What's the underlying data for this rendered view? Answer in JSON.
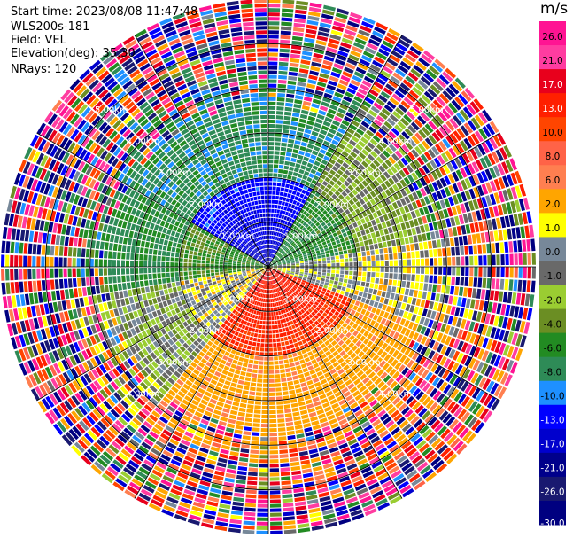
{
  "header": {
    "start_time": "Start time: 2023/08/08 11:47:48",
    "instrument": "WLS200s-181",
    "field": "Field: VEL",
    "elevation": "Elevation(deg): 35.30",
    "nrays": "NRays: 120"
  },
  "chart_data": {
    "type": "heatmap",
    "projection": "polar-ppi",
    "field": "VEL",
    "unit": "m/s",
    "n_rays": 120,
    "max_range_km": 6.0,
    "range_ring_labels": [
      "1.00km",
      "2.00km",
      "3.00km",
      "4.00km",
      "5.00km"
    ],
    "range_rings_km": [
      1,
      2,
      3,
      4,
      5
    ],
    "azimuth_lines_deg": [
      0,
      30,
      60,
      90,
      120,
      150,
      180,
      210,
      240,
      270,
      300,
      330
    ],
    "sector_means_ms": [
      {
        "az_from": 300,
        "az_to": 30,
        "near_km_mean": -11,
        "mid_km_mean": -7
      },
      {
        "az_from": 30,
        "az_to": 80,
        "near_km_mean": -5,
        "mid_km_mean": -2
      },
      {
        "az_from": 80,
        "az_to": 110,
        "near_km_mean": 0,
        "mid_km_mean": 1
      },
      {
        "az_from": 110,
        "az_to": 220,
        "near_km_mean": 13,
        "mid_km_mean": 5
      },
      {
        "az_from": 220,
        "az_to": 260,
        "near_km_mean": 1,
        "mid_km_mean": -1
      },
      {
        "az_from": 260,
        "az_to": 300,
        "near_km_mean": -4,
        "mid_km_mean": -6
      }
    ],
    "colorbar": {
      "title": "m/s",
      "tick_labels": [
        "26.0",
        "21.0",
        "17.0",
        "13.0",
        "10.0",
        "8.0",
        "6.0",
        "2.0",
        "1.0",
        "0.0",
        "-1.0",
        "-2.0",
        "-4.0",
        "-6.0",
        "-8.0",
        "-10.0",
        "-13.0",
        "-17.0",
        "-21.0",
        "-26.0",
        "-30.0"
      ],
      "bins": [
        {
          "lo": 26,
          "hi": 30,
          "color": "#ff1493"
        },
        {
          "lo": 21,
          "hi": 26,
          "color": "#ff3ca0"
        },
        {
          "lo": 17,
          "hi": 21,
          "color": "#e8001c"
        },
        {
          "lo": 13,
          "hi": 17,
          "color": "#ff2000"
        },
        {
          "lo": 10,
          "hi": 13,
          "color": "#ff4500"
        },
        {
          "lo": 8,
          "hi": 10,
          "color": "#ff6347"
        },
        {
          "lo": 6,
          "hi": 8,
          "color": "#ff7f50"
        },
        {
          "lo": 2,
          "hi": 6,
          "color": "#ffa500"
        },
        {
          "lo": 1,
          "hi": 2,
          "color": "#ffff00"
        },
        {
          "lo": 0,
          "hi": 1,
          "color": "#778899"
        },
        {
          "lo": -1,
          "hi": 0,
          "color": "#696969"
        },
        {
          "lo": -2,
          "hi": -1,
          "color": "#9acd32"
        },
        {
          "lo": -4,
          "hi": -2,
          "color": "#6b8e23"
        },
        {
          "lo": -6,
          "hi": -4,
          "color": "#228b22"
        },
        {
          "lo": -8,
          "hi": -6,
          "color": "#2e8b57"
        },
        {
          "lo": -10,
          "hi": -8,
          "color": "#1e90ff"
        },
        {
          "lo": -13,
          "hi": -10,
          "color": "#0000ff"
        },
        {
          "lo": -17,
          "hi": -13,
          "color": "#0000cd"
        },
        {
          "lo": -21,
          "hi": -17,
          "color": "#00008b"
        },
        {
          "lo": -26,
          "hi": -21,
          "color": "#191970"
        },
        {
          "lo": -30,
          "hi": -26,
          "color": "#000080"
        }
      ]
    }
  }
}
